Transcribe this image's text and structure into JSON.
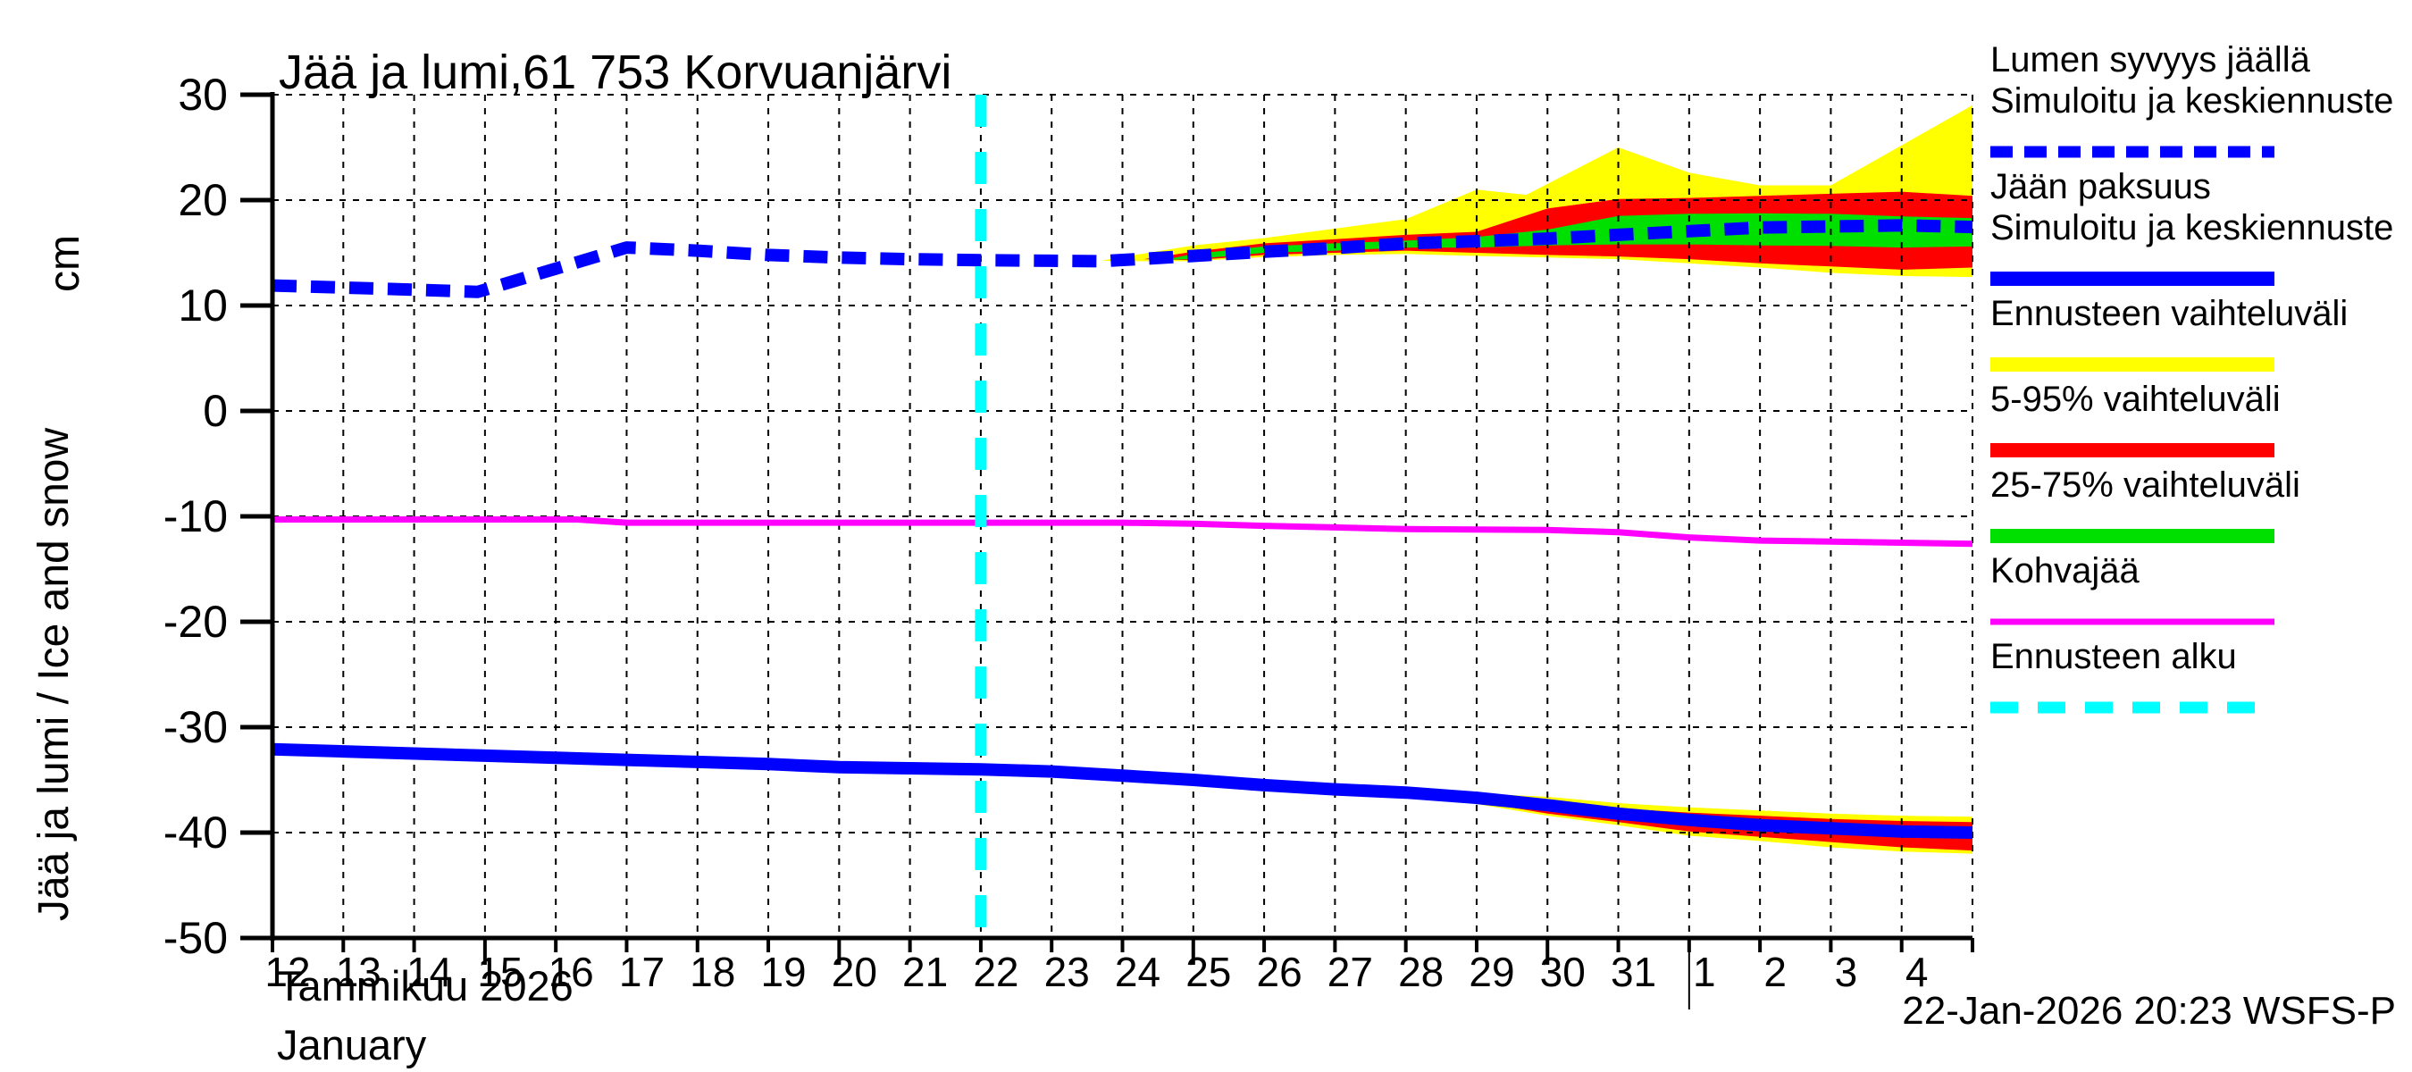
{
  "title": "Jää ja lumi,61 753 Korvuanjärvi",
  "y_axis": {
    "unit": "cm",
    "label": "Jää ja lumi / Ice and snow",
    "ticks": [
      30,
      20,
      10,
      0,
      -10,
      -20,
      -30,
      -40,
      -50
    ]
  },
  "x_axis": {
    "label_fi": "Tammikuu 2026",
    "label_en": "January",
    "days_january": [
      12,
      13,
      14,
      15,
      16,
      17,
      18,
      19,
      20,
      21,
      22,
      23,
      24,
      25,
      26,
      27,
      28,
      29,
      30,
      31
    ],
    "days_february": [
      1,
      2,
      3,
      4
    ],
    "long_tick_days": [
      15,
      20,
      25,
      30
    ]
  },
  "footer": {
    "timestamp": "22-Jan-2026 20:23 WSFS-P"
  },
  "colors": {
    "blue": "#0000ff",
    "yellow": "#ffff00",
    "red": "#ff0000",
    "green": "#00e000",
    "magenta": "#ff00ff",
    "cyan": "#00ffff",
    "axis": "#000000"
  },
  "legend": {
    "items": [
      {
        "name": "snow-depth",
        "lines": [
          "Lumen syvyys jäällä",
          "Simuloitu ja keskiennuste"
        ],
        "style": "dashed",
        "color": "#0000ff",
        "width": 13,
        "dash": "25 13"
      },
      {
        "name": "ice-thickness",
        "lines": [
          "Jään paksuus",
          "Simuloitu ja keskiennuste"
        ],
        "style": "solid",
        "color": "#0000ff",
        "width": 16
      },
      {
        "name": "forecast-range",
        "lines": [
          "Ennusteen vaihteluväli"
        ],
        "style": "solid",
        "color": "#ffff00",
        "width": 16
      },
      {
        "name": "range-5-95",
        "lines": [
          "5-95% vaihteluväli"
        ],
        "style": "solid",
        "color": "#ff0000",
        "width": 16
      },
      {
        "name": "range-25-75",
        "lines": [
          "25-75% vaihteluväli"
        ],
        "style": "solid",
        "color": "#00e000",
        "width": 16
      },
      {
        "name": "kohvajaa",
        "lines": [
          "Kohvajää"
        ],
        "style": "solid",
        "color": "#ff00ff",
        "width": 7
      },
      {
        "name": "forecast-start",
        "lines": [
          "Ennusteen alku"
        ],
        "style": "dashed",
        "color": "#00ffff",
        "width": 13,
        "dash": "31 22"
      }
    ]
  },
  "chart_data": {
    "type": "line",
    "title": "Jää ja lumi,61 753 Korvuanjärvi",
    "xlabel": "Tammikuu 2026 / January",
    "ylabel": "Jää ja lumi / Ice and snow (cm)",
    "x_unit": "days since 12-Jan-2026",
    "xlim": [
      0,
      24
    ],
    "ylim": [
      -50,
      30
    ],
    "grid_y": [
      30,
      20,
      10,
      0,
      -10,
      -20,
      -30,
      -40
    ],
    "grid": true,
    "legend_position": "right",
    "forecast_start_x": 10,
    "month_separator_x": 20,
    "bands": [
      {
        "name": "snow-forecast-range",
        "legend": "Ennusteen vaihteluväli",
        "color": "yellow",
        "top": [
          [
            11.7,
            14.25
          ],
          [
            12,
            14.6
          ],
          [
            13,
            15.7
          ],
          [
            14,
            16.4
          ],
          [
            15,
            17.3
          ],
          [
            16,
            18.2
          ],
          [
            17,
            21.0
          ],
          [
            17.7,
            20.5
          ],
          [
            19,
            25.0
          ],
          [
            20,
            22.6
          ],
          [
            21,
            21.4
          ],
          [
            22,
            21.4
          ],
          [
            24,
            29.0
          ]
        ],
        "bottom": [
          [
            11.7,
            14.25
          ],
          [
            12,
            14.2
          ],
          [
            13,
            14.2
          ],
          [
            14,
            14.6
          ],
          [
            15,
            14.8
          ],
          [
            16,
            14.9
          ],
          [
            17,
            14.7
          ],
          [
            18,
            14.55
          ],
          [
            19,
            14.4
          ],
          [
            20,
            14.0
          ],
          [
            21,
            13.6
          ],
          [
            22,
            13.1
          ],
          [
            23,
            12.8
          ],
          [
            24,
            12.7
          ]
        ]
      },
      {
        "name": "snow-5-95-range",
        "legend": "5-95% vaihteluväli",
        "color": "red",
        "top": [
          [
            12.3,
            14.4
          ],
          [
            13,
            15.1
          ],
          [
            14,
            15.9
          ],
          [
            15,
            16.3
          ],
          [
            16,
            16.7
          ],
          [
            17,
            17.0
          ],
          [
            18,
            19.2
          ],
          [
            19,
            20.1
          ],
          [
            20,
            20.2
          ],
          [
            21,
            20.4
          ],
          [
            22,
            20.6
          ],
          [
            23,
            20.8
          ],
          [
            24,
            20.4
          ]
        ],
        "bottom": [
          [
            12.3,
            14.4
          ],
          [
            13,
            14.3
          ],
          [
            14,
            14.8
          ],
          [
            15,
            15.0
          ],
          [
            16,
            15.2
          ],
          [
            17,
            15.0
          ],
          [
            18,
            14.8
          ],
          [
            19,
            14.65
          ],
          [
            20,
            14.4
          ],
          [
            21,
            14.0
          ],
          [
            22,
            13.7
          ],
          [
            23,
            13.4
          ],
          [
            24,
            13.6
          ]
        ]
      },
      {
        "name": "snow-25-75-range",
        "legend": "25-75% vaihteluväli",
        "color": "green",
        "top": [
          [
            12.6,
            14.35
          ],
          [
            13,
            14.9
          ],
          [
            14,
            15.6
          ],
          [
            15,
            15.9
          ],
          [
            16,
            16.15
          ],
          [
            17,
            16.5
          ],
          [
            18,
            17.2
          ],
          [
            19,
            18.5
          ],
          [
            20,
            18.7
          ],
          [
            21,
            18.75
          ],
          [
            22,
            18.7
          ],
          [
            23,
            18.45
          ],
          [
            24,
            18.3
          ]
        ],
        "bottom": [
          [
            12.6,
            14.35
          ],
          [
            13,
            14.4
          ],
          [
            14,
            15.0
          ],
          [
            15,
            15.2
          ],
          [
            16,
            15.5
          ],
          [
            17,
            15.5
          ],
          [
            18,
            15.7
          ],
          [
            19,
            15.8
          ],
          [
            20,
            15.8
          ],
          [
            21,
            15.7
          ],
          [
            22,
            15.65
          ],
          [
            23,
            15.5
          ],
          [
            24,
            15.6
          ]
        ]
      },
      {
        "name": "ice-forecast-range",
        "legend": "Ennusteen vaihteluväli",
        "color": "yellow",
        "top": [
          [
            15.5,
            -35.85
          ],
          [
            17,
            -36.3
          ],
          [
            18,
            -36.6
          ],
          [
            19,
            -37.2
          ],
          [
            20,
            -37.6
          ],
          [
            21,
            -37.9
          ],
          [
            22,
            -38.2
          ],
          [
            23,
            -38.4
          ],
          [
            24,
            -38.5
          ]
        ],
        "bottom": [
          [
            15.5,
            -35.85
          ],
          [
            17,
            -37.3
          ],
          [
            18,
            -38.4
          ],
          [
            19,
            -39.3
          ],
          [
            20,
            -40.3
          ],
          [
            21,
            -40.8
          ],
          [
            22,
            -41.4
          ],
          [
            23,
            -41.8
          ],
          [
            24,
            -42.0
          ]
        ]
      },
      {
        "name": "ice-5-95-range",
        "legend": "5-95% vaihteluväli",
        "color": "red",
        "top": [
          [
            16.5,
            -36.5
          ],
          [
            18,
            -37.1
          ],
          [
            19,
            -37.7
          ],
          [
            20,
            -38.1
          ],
          [
            21,
            -38.4
          ],
          [
            22,
            -38.7
          ],
          [
            23,
            -38.9
          ],
          [
            24,
            -39.0
          ]
        ],
        "bottom": [
          [
            16.5,
            -36.5
          ],
          [
            18,
            -38.2
          ],
          [
            19,
            -39.0
          ],
          [
            20,
            -39.9
          ],
          [
            21,
            -40.4
          ],
          [
            22,
            -40.9
          ],
          [
            23,
            -41.4
          ],
          [
            24,
            -41.7
          ]
        ]
      },
      {
        "name": "ice-25-75-range",
        "legend": "25-75% vaihteluväli",
        "color": "green",
        "top": [
          [
            17,
            -36.4
          ],
          [
            18,
            -37.0
          ],
          [
            19,
            -37.8
          ],
          [
            20,
            -38.4
          ],
          [
            21,
            -38.9
          ],
          [
            22,
            -39.2
          ],
          [
            23,
            -39.5
          ],
          [
            24,
            -39.6
          ]
        ],
        "bottom": [
          [
            17,
            -37.1
          ],
          [
            18,
            -37.8
          ],
          [
            19,
            -38.6
          ],
          [
            20,
            -39.2
          ],
          [
            21,
            -39.7
          ],
          [
            22,
            -40.0
          ],
          [
            23,
            -40.3
          ],
          [
            24,
            -40.4
          ]
        ]
      }
    ],
    "series": [
      {
        "name": "ice-thickness-median",
        "legend": "Jään paksuus — Simuloitu ja keskiennuste",
        "color": "blue",
        "style": "solid",
        "width": 14,
        "points": [
          [
            0,
            -32.1
          ],
          [
            1,
            -32.3
          ],
          [
            2,
            -32.5
          ],
          [
            3,
            -32.7
          ],
          [
            4,
            -32.9
          ],
          [
            5,
            -33.1
          ],
          [
            6,
            -33.3
          ],
          [
            7,
            -33.5
          ],
          [
            8,
            -33.8
          ],
          [
            9,
            -33.9
          ],
          [
            10,
            -34.0
          ],
          [
            11,
            -34.2
          ],
          [
            12,
            -34.6
          ],
          [
            13,
            -35.0
          ],
          [
            14,
            -35.5
          ],
          [
            15,
            -35.9
          ],
          [
            16,
            -36.2
          ],
          [
            17,
            -36.7
          ],
          [
            18,
            -37.4
          ],
          [
            19,
            -38.2
          ],
          [
            20,
            -38.8
          ],
          [
            21,
            -39.3
          ],
          [
            22,
            -39.6
          ],
          [
            23,
            -39.9
          ],
          [
            24,
            -40.0
          ]
        ]
      },
      {
        "name": "kohvajaa",
        "legend": "Kohvajää",
        "color": "magenta",
        "style": "solid",
        "width": 7,
        "points": [
          [
            0,
            -10.3
          ],
          [
            4.3,
            -10.3
          ],
          [
            5,
            -10.6
          ],
          [
            12,
            -10.6
          ],
          [
            13,
            -10.7
          ],
          [
            14,
            -10.9
          ],
          [
            15,
            -11.05
          ],
          [
            16,
            -11.2
          ],
          [
            17,
            -11.25
          ],
          [
            18,
            -11.3
          ],
          [
            19,
            -11.5
          ],
          [
            20,
            -12.0
          ],
          [
            21,
            -12.3
          ],
          [
            22,
            -12.4
          ],
          [
            23,
            -12.5
          ],
          [
            24,
            -12.6
          ]
        ]
      },
      {
        "name": "snow-depth-median",
        "legend": "Lumen syvyys jäällä — Simuloitu ja keskiennuste",
        "color": "blue",
        "style": "dashed",
        "width": 14,
        "dash": "27 16",
        "points": [
          [
            0,
            11.9
          ],
          [
            1,
            11.7
          ],
          [
            2,
            11.5
          ],
          [
            2.9,
            11.3
          ],
          [
            5,
            15.5
          ],
          [
            6,
            15.2
          ],
          [
            7,
            14.8
          ],
          [
            8,
            14.55
          ],
          [
            9,
            14.4
          ],
          [
            10,
            14.3
          ],
          [
            11,
            14.25
          ],
          [
            11.7,
            14.2
          ],
          [
            13,
            14.7
          ],
          [
            14,
            15.1
          ],
          [
            15,
            15.45
          ],
          [
            16,
            15.9
          ],
          [
            17,
            16.1
          ],
          [
            18,
            16.35
          ],
          [
            19,
            16.7
          ],
          [
            20,
            17.05
          ],
          [
            21,
            17.4
          ],
          [
            22,
            17.5
          ],
          [
            23,
            17.6
          ],
          [
            24,
            17.45
          ]
        ]
      }
    ]
  }
}
